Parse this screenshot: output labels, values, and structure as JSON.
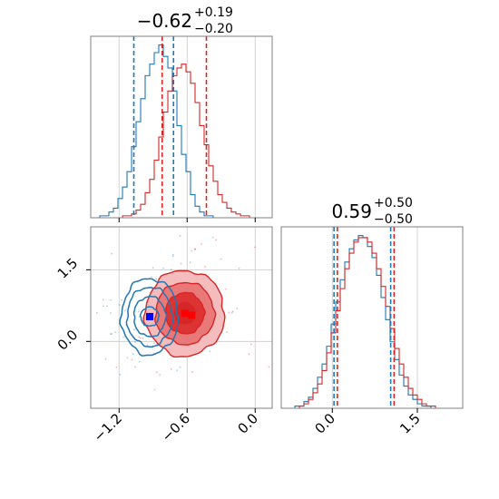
{
  "chart_data": [
    {
      "type": "histogram",
      "panel": "top-left",
      "parameter_index": 0,
      "title": "-0.62",
      "title_value": "−0.62",
      "title_plus": "+0.19",
      "title_minus": "−0.20",
      "xlim": [
        -1.45,
        0.15
      ],
      "grid": true,
      "series": [
        {
          "name": "",
          "color": "#1f77b4",
          "quantile_lines": [
            -1.07,
            -0.72
          ],
          "bin_edges": [
            -1.45,
            -1.41,
            -1.37,
            -1.33,
            -1.29,
            -1.25,
            -1.21,
            -1.17,
            -1.13,
            -1.09,
            -1.05,
            -1.01,
            -0.97,
            -0.93,
            -0.89,
            -0.85,
            -0.81,
            -0.77,
            -0.73,
            -0.69,
            -0.65,
            -0.61,
            -0.57,
            -0.53,
            -0.49,
            -0.45,
            -0.41,
            -0.37,
            -0.33,
            -0.29,
            -0.25,
            -0.21,
            -0.17,
            -0.13,
            -0.09,
            -0.05,
            -0.01,
            0.03,
            0.07,
            0.11,
            0.15
          ],
          "counts": [
            0,
            0,
            1,
            1,
            3,
            5,
            10,
            16,
            24,
            37,
            50,
            62,
            74,
            80,
            86,
            90,
            84,
            78,
            66,
            48,
            33,
            24,
            12,
            6,
            3,
            1,
            1,
            0,
            0,
            0,
            0,
            0,
            0,
            0,
            0,
            0,
            0,
            0,
            0,
            0
          ]
        },
        {
          "name": "",
          "color": "#d62728",
          "quantile_lines": [
            -0.82,
            -0.43
          ],
          "bin_edges": [
            -1.45,
            -1.41,
            -1.37,
            -1.33,
            -1.29,
            -1.25,
            -1.21,
            -1.17,
            -1.13,
            -1.09,
            -1.05,
            -1.01,
            -0.97,
            -0.93,
            -0.89,
            -0.85,
            -0.81,
            -0.77,
            -0.73,
            -0.69,
            -0.65,
            -0.61,
            -0.57,
            -0.53,
            -0.49,
            -0.45,
            -0.41,
            -0.37,
            -0.33,
            -0.29,
            -0.25,
            -0.21,
            -0.17,
            -0.13,
            -0.09,
            -0.05,
            -0.01,
            0.03,
            0.07,
            0.11,
            0.15
          ],
          "counts": [
            0,
            0,
            0,
            0,
            0,
            0,
            0,
            1,
            1,
            2,
            4,
            7,
            13,
            20,
            30,
            42,
            55,
            66,
            74,
            78,
            80,
            76,
            70,
            60,
            48,
            38,
            27,
            19,
            12,
            8,
            5,
            3,
            2,
            1,
            1,
            0,
            0,
            0,
            0,
            0
          ]
        }
      ]
    },
    {
      "type": "histogram",
      "panel": "bottom-right",
      "parameter_index": 1,
      "title": "0.59",
      "title_value": "0.59",
      "title_plus": "+0.50",
      "title_minus": "−0.50",
      "xlim": [
        -0.9,
        2.3
      ],
      "grid": true,
      "series": [
        {
          "name": "",
          "color": "#1f77b4",
          "quantile_lines": [
            0.03,
            1.03
          ],
          "bin_edges": [
            -0.9,
            -0.82,
            -0.74,
            -0.66,
            -0.58,
            -0.5,
            -0.42,
            -0.34,
            -0.26,
            -0.18,
            -0.1,
            -0.02,
            0.06,
            0.14,
            0.22,
            0.3,
            0.38,
            0.46,
            0.54,
            0.62,
            0.7,
            0.78,
            0.86,
            0.94,
            1.02,
            1.1,
            1.18,
            1.26,
            1.34,
            1.42,
            1.5,
            1.58,
            1.66,
            1.74,
            1.82,
            1.9,
            1.98,
            2.06,
            2.14,
            2.22,
            2.3
          ],
          "counts": [
            0,
            0,
            0,
            1,
            1,
            3,
            5,
            9,
            14,
            20,
            28,
            38,
            48,
            58,
            66,
            72,
            76,
            78,
            77,
            73,
            68,
            60,
            50,
            40,
            30,
            22,
            15,
            10,
            6,
            4,
            2,
            1,
            1,
            0,
            0,
            0,
            0,
            0,
            0,
            0
          ]
        },
        {
          "name": "",
          "color": "#d62728",
          "quantile_lines": [
            0.09,
            1.09
          ],
          "bin_edges": [
            -0.9,
            -0.82,
            -0.74,
            -0.66,
            -0.58,
            -0.5,
            -0.42,
            -0.34,
            -0.26,
            -0.18,
            -0.1,
            -0.02,
            0.06,
            0.14,
            0.22,
            0.3,
            0.38,
            0.46,
            0.54,
            0.62,
            0.7,
            0.78,
            0.86,
            0.94,
            1.02,
            1.1,
            1.18,
            1.26,
            1.34,
            1.42,
            1.5,
            1.58,
            1.66,
            1.74,
            1.82,
            1.9,
            1.98,
            2.06,
            2.14,
            2.22,
            2.3
          ],
          "counts": [
            0,
            0,
            0,
            0,
            1,
            2,
            4,
            7,
            11,
            17,
            25,
            34,
            44,
            54,
            63,
            70,
            75,
            77,
            77,
            75,
            70,
            63,
            55,
            46,
            36,
            27,
            20,
            14,
            9,
            6,
            4,
            2,
            1,
            1,
            0,
            0,
            0,
            0,
            0,
            0
          ]
        }
      ]
    },
    {
      "type": "contour",
      "panel": "bottom-left",
      "xlim": [
        -1.45,
        0.15
      ],
      "ylim": [
        -1.4,
        2.4
      ],
      "grid": true,
      "x_ticks": [
        -1.2,
        -0.6,
        0.0
      ],
      "x_tick_labels": [
        "−1.2",
        "−0.6",
        "0.0"
      ],
      "y_ticks": [
        0.0,
        1.5
      ],
      "y_tick_labels": [
        "0.0",
        "1.5"
      ],
      "series": [
        {
          "name": "",
          "color": "#1f77b4",
          "filled": false,
          "marker": "square",
          "marker_color": "#0000ff",
          "center": [
            -0.93,
            0.52
          ],
          "contour_sigma": [
            [
              0.08,
              0.2
            ],
            [
              0.14,
              0.42
            ],
            [
              0.2,
              0.62
            ],
            [
              0.25,
              0.8
            ]
          ]
        },
        {
          "name": "",
          "color": "#d62728",
          "filled": true,
          "fill_colors": [
            "#f4bcbc",
            "#e97878",
            "#dd3333",
            "#d62728"
          ],
          "marker": "square",
          "marker_color": "#ff0000",
          "center": [
            -0.62,
            0.59
          ],
          "contour_sigma": [
            [
              0.09,
              0.22
            ],
            [
              0.17,
              0.43
            ],
            [
              0.26,
              0.65
            ],
            [
              0.35,
              0.9
            ]
          ]
        }
      ]
    }
  ]
}
